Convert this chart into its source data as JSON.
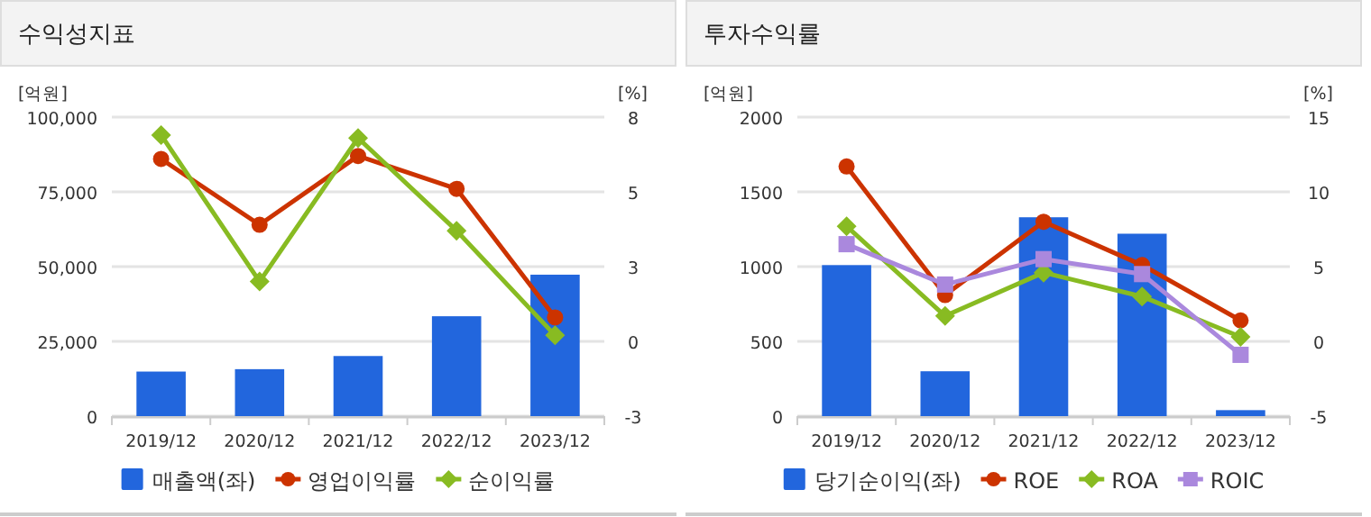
{
  "chart_data": [
    {
      "type": "bar",
      "title": "수익성지표",
      "ylabel": "[억원]",
      "y2label": "[%]",
      "categories": [
        "2019/12",
        "2020/12",
        "2021/12",
        "2022/12",
        "2023/12"
      ],
      "series": [
        {
          "name": "매출액(좌)",
          "color": "#2266dd",
          "values": [
            14900,
            15700,
            20100,
            33400,
            47300
          ]
        },
        {
          "name": "영업이익률",
          "type": "line",
          "axis": "y2",
          "marker": "circle",
          "color": "#cc3300",
          "values": [
            6.1,
            3.9,
            6.2,
            5.1,
            0.8
          ]
        },
        {
          "name": "순이익률",
          "type": "line",
          "axis": "y2",
          "marker": "diamond",
          "color": "#88bb22",
          "values": [
            6.9,
            2,
            6.8,
            3.7,
            0.2
          ]
        }
      ],
      "ylim": [
        0,
        100000
      ],
      "yticks": [
        {
          "value": 0,
          "label": "0"
        },
        {
          "value": 25000,
          "label": "25,000"
        },
        {
          "value": 50000,
          "label": "50,000"
        },
        {
          "value": 75000,
          "label": "75,000"
        },
        {
          "value": 100000,
          "label": "100,000"
        }
      ],
      "y2lim": [
        -2.5,
        7.5
      ],
      "y2ticks": [
        {
          "value": -2.5,
          "label": "-3"
        },
        {
          "value": 0,
          "label": "0"
        },
        {
          "value": 2.5,
          "label": "3"
        },
        {
          "value": 5,
          "label": "5"
        },
        {
          "value": 7.5,
          "label": "8"
        }
      ],
      "grid": "y",
      "legend": "bottom"
    },
    {
      "type": "bar",
      "title": "투자수익률",
      "ylabel": "[억원]",
      "y2label": "[%]",
      "categories": [
        "2019/12",
        "2020/12",
        "2021/12",
        "2022/12",
        "2023/12"
      ],
      "series": [
        {
          "name": "당기순이익(좌)",
          "color": "#2266dd",
          "values": [
            1010,
            300,
            1330,
            1220,
            40
          ]
        },
        {
          "name": "ROE",
          "type": "line",
          "axis": "y2",
          "marker": "circle",
          "color": "#cc3300",
          "values": [
            11.7,
            3.1,
            8,
            5.1,
            1.4
          ]
        },
        {
          "name": "ROA",
          "type": "line",
          "axis": "y2",
          "marker": "diamond",
          "color": "#88bb22",
          "values": [
            7.7,
            1.7,
            4.6,
            3,
            0.3
          ]
        },
        {
          "name": "ROIC",
          "type": "line",
          "axis": "y2",
          "marker": "square",
          "color": "#aa88dd",
          "values": [
            6.5,
            3.8,
            5.5,
            4.5,
            -0.9
          ]
        }
      ],
      "ylim": [
        0,
        2000
      ],
      "yticks": [
        0,
        500,
        1000,
        1500,
        2000
      ],
      "y2lim": [
        -5,
        15
      ],
      "y2ticks": [
        -5,
        0,
        5,
        10,
        15
      ],
      "grid": "y",
      "legend": "bottom"
    }
  ]
}
